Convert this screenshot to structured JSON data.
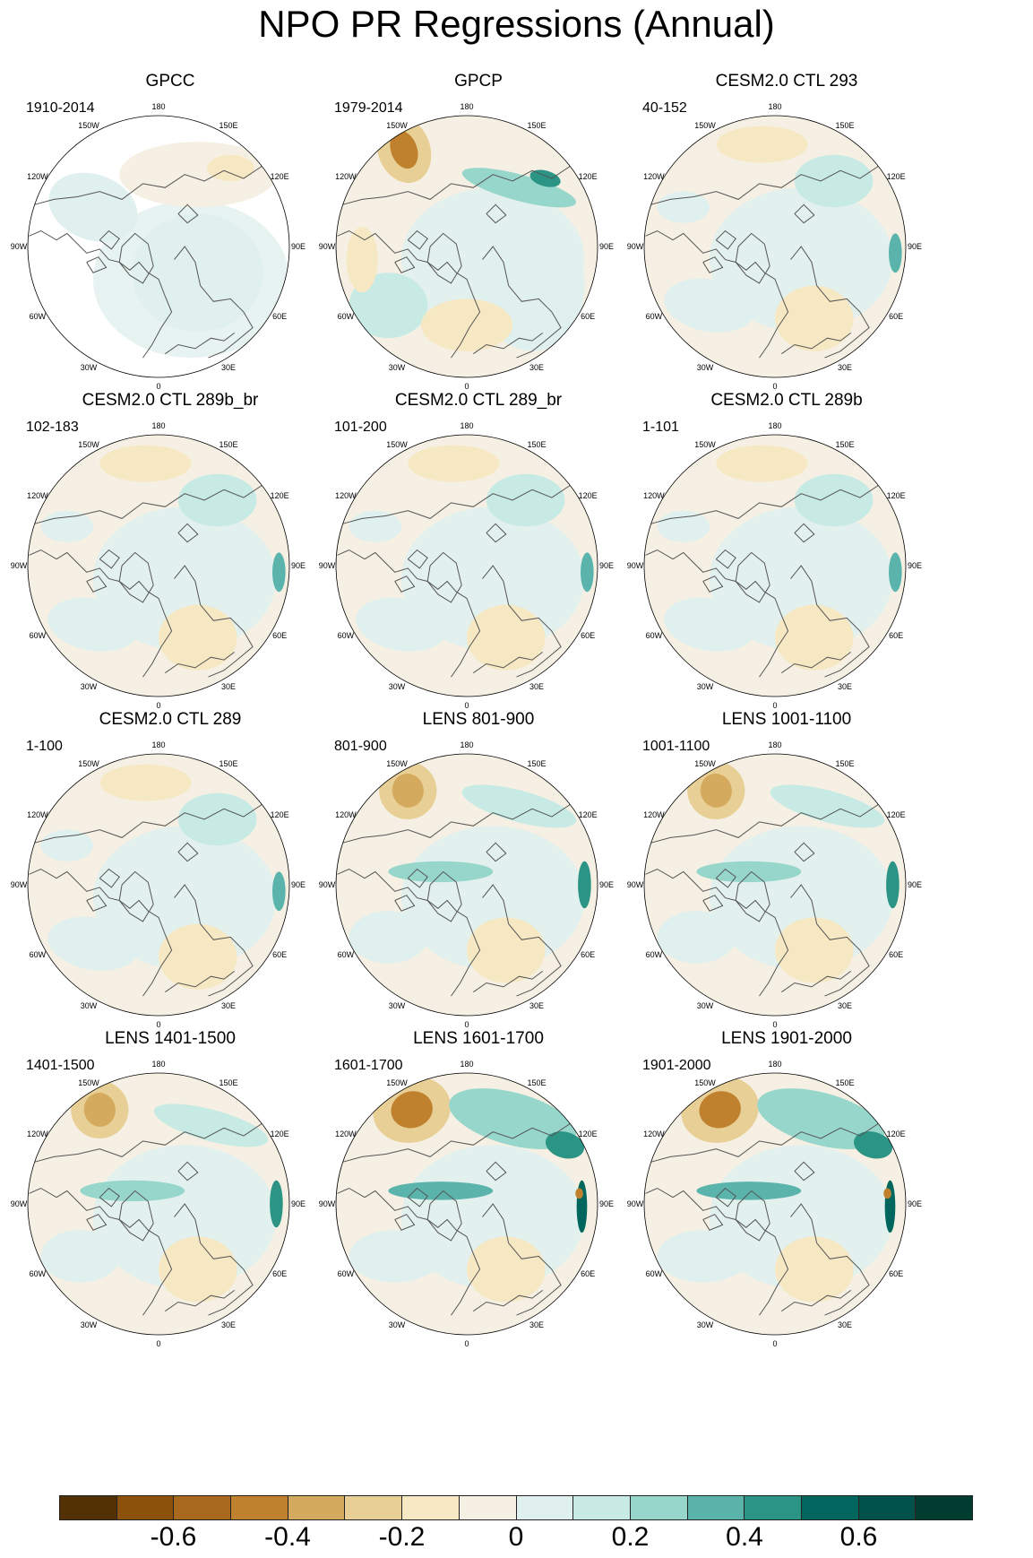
{
  "title": "NPO PR Regressions (Annual)",
  "panels": [
    {
      "title": "GPCC",
      "period": "1910-2014",
      "pattern": "gpcc"
    },
    {
      "title": "GPCP",
      "period": "1979-2014",
      "pattern": "gpcp"
    },
    {
      "title": "CESM2.0 CTL 293",
      "period": "40-152",
      "pattern": "weak"
    },
    {
      "title": "CESM2.0 CTL 289b_br",
      "period": "102-183",
      "pattern": "weak"
    },
    {
      "title": "CESM2.0 CTL 289_br",
      "period": "101-200",
      "pattern": "weak"
    },
    {
      "title": "CESM2.0 CTL 289b",
      "period": "1-101",
      "pattern": "weak"
    },
    {
      "title": "CESM2.0 CTL 289",
      "period": "1-100",
      "pattern": "weak"
    },
    {
      "title": "LENS 801-900",
      "period": "801-900",
      "pattern": "medium"
    },
    {
      "title": "LENS 1001-1100",
      "period": "1001-1100",
      "pattern": "medium"
    },
    {
      "title": "LENS 1401-1500",
      "period": "1401-1500",
      "pattern": "medium"
    },
    {
      "title": "LENS 1601-1700",
      "period": "1601-1700",
      "pattern": "strong"
    },
    {
      "title": "LENS 1901-2000",
      "period": "1901-2000",
      "pattern": "strong"
    }
  ],
  "longitude_labels": [
    "180",
    "150E",
    "120E",
    "90E",
    "60E",
    "30E",
    "0",
    "30W",
    "60W",
    "90W",
    "120W",
    "150W"
  ],
  "colorbar": {
    "colors": [
      "#543005",
      "#8c510a",
      "#a8681e",
      "#bf812d",
      "#d4aa5e",
      "#e8cf96",
      "#f6e8c3",
      "#f5f0e3",
      "#e0f0ee",
      "#c7eae5",
      "#97d6cb",
      "#5ab4ac",
      "#2b9485",
      "#01665e",
      "#00524a",
      "#003c30"
    ],
    "levels": [
      -0.7,
      -0.6,
      -0.5,
      -0.4,
      -0.3,
      -0.2,
      -0.1,
      0,
      0.1,
      0.2,
      0.3,
      0.4,
      0.5,
      0.6,
      0.7
    ],
    "labels": [
      "-0.6",
      "-0.4",
      "-0.2",
      "0",
      "0.2",
      "0.4",
      "0.6"
    ]
  }
}
